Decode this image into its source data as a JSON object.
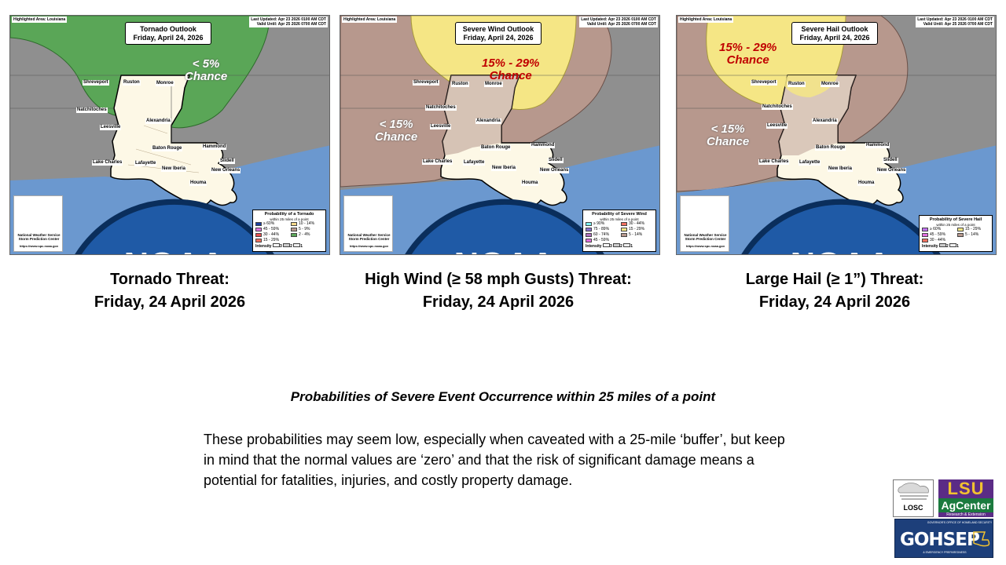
{
  "highlighted_area": "Highlighted Area: Louisiana",
  "last_updated": "Last Updated: Apr 23 2026 0100 AM CDT",
  "valid_until": "Valid Until: Apr 25 2026 0700 AM CDT",
  "cities": [
    "Shreveport",
    "Ruston",
    "Monroe",
    "Natchitoches",
    "Alexandria",
    "Leesville",
    "Baton Rouge",
    "Hammond",
    "Lake Charles",
    "Lafayette",
    "New Iberia",
    "Slidell",
    "New Orleans",
    "Houma"
  ],
  "noaa": {
    "logo_text": "NOAA",
    "org_line1": "National Weather Service",
    "org_line2": "Storm Prediction Center",
    "url": "https://www.spc.noaa.gov"
  },
  "colors": {
    "gray": "#8f8f8f",
    "tornado_2_4": "#5aa657",
    "wind_5_14": "#b7988d",
    "wind_15_29": "#f5e685",
    "gulf_water": "#6b98cf",
    "state_fill": "#fdf8e6"
  },
  "maps": {
    "tornado": {
      "title_line1": "Tornado Outlook",
      "title_line2": "Friday, April 24, 2026",
      "chance_line1": "< 5%",
      "chance_line2": "Chance",
      "legend": {
        "title": "Probability of a Tornado",
        "subtitle": "within 25 miles of a point",
        "items": [
          "≥ 60%",
          "10 - 14%",
          "45 - 59%",
          "5 - 9%",
          "30 - 44%",
          "2 - 4%",
          "15 - 29%"
        ],
        "intensity": "Intensity",
        "intensity_levels": [
          "1",
          "2",
          "3"
        ]
      }
    },
    "wind": {
      "title_line1": "Severe Wind Outlook",
      "title_line2": "Friday, April 24, 2026",
      "chance_high_line1": "15% - 29%",
      "chance_high_line2": "Chance",
      "chance_low_line1": "< 15%",
      "chance_low_line2": "Chance",
      "legend": {
        "title": "Probability of Severe Wind",
        "subtitle": "within 25 miles of a point",
        "items": [
          "≥ 90%",
          "30 - 44%",
          "75 - 89%",
          "15 - 29%",
          "60 - 74%",
          "5 - 14%",
          "45 - 59%"
        ],
        "intensity": "Intensity",
        "intensity_levels": [
          "1",
          "2",
          "3"
        ]
      }
    },
    "hail": {
      "title_line1": "Severe Hail Outlook",
      "title_line2": "Friday, April 24, 2026",
      "chance_high_line1": "15% - 29%",
      "chance_high_line2": "Chance",
      "chance_low_line1": "< 15%",
      "chance_low_line2": "Chance",
      "legend": {
        "title": "Probability of Severe Hail",
        "subtitle": "within 25 miles of a point",
        "items": [
          "≥ 60%",
          "15 - 29%",
          "45 - 59%",
          "5 - 14%",
          "30 - 44%"
        ],
        "intensity": "Intensity",
        "intensity_levels": [
          "1",
          "2"
        ]
      }
    }
  },
  "captions": {
    "tornado_line1": "Tornado Threat:",
    "tornado_line2": "Friday, 24 April 2026",
    "wind_line1": "High Wind (≥ 58 mph Gusts) Threat:",
    "wind_line2": "Friday, 24 April 2026",
    "hail_line1": "Large Hail (≥ 1”) Threat:",
    "hail_line2": "Friday, 24 April 2026"
  },
  "subheading": "Probabilities of Severe Event Occurrence within 25 miles of a point",
  "body": "These probabilities may seem low, especially when caveated with a 25-mile ‘buffer’, but keep in mind that the normal values are ‘zero’ and that the risk of significant damage means a potential for fatalities, injuries, and costly property damage.",
  "logos": {
    "losc": "LOSC",
    "lsu_top": "LSU",
    "lsu_mid": "AgCenter",
    "lsu_bottom": "Research & Extension",
    "gohsep_small": "GOVERNOR'S OFFICE OF HOMELAND SECURITY",
    "gohsep": "GOHSEP",
    "gohsep_bottom": "& EMERGENCY PREPAREDNESS"
  }
}
